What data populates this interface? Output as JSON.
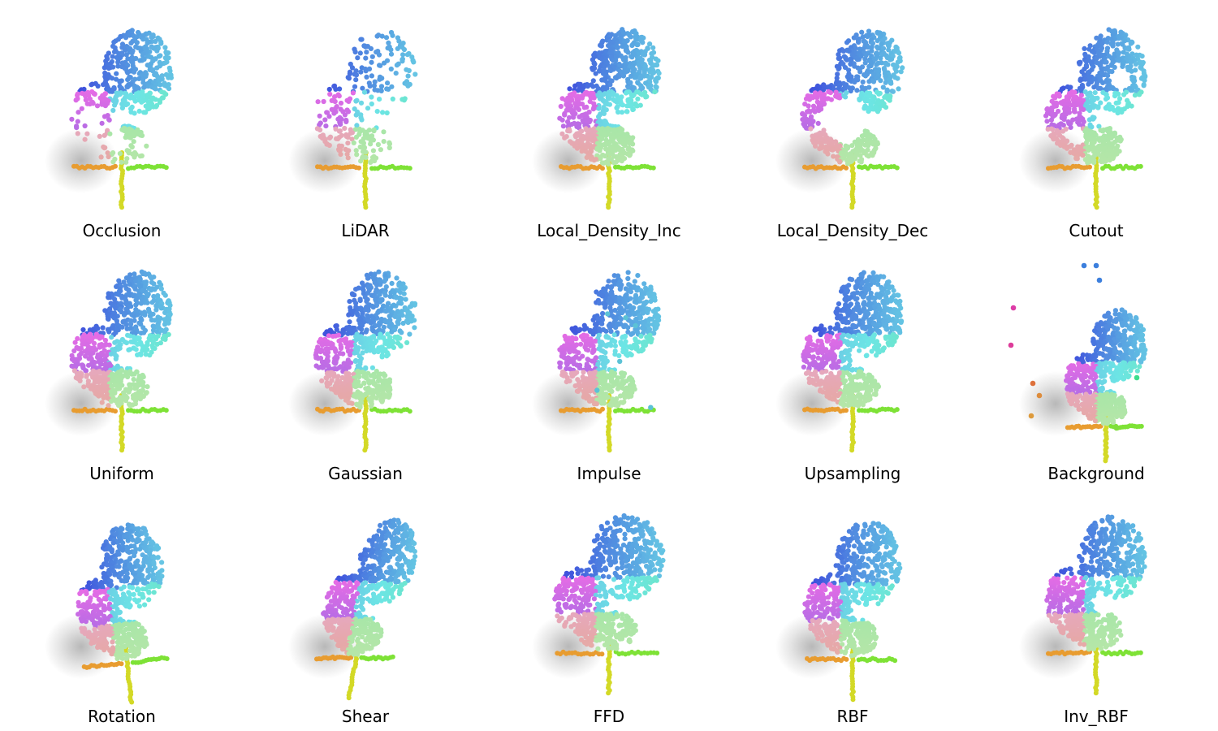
{
  "panels": [
    {
      "label": "Occlusion",
      "variant": "occlusion"
    },
    {
      "label": "LiDAR",
      "variant": "lidar"
    },
    {
      "label": "Local_Density_Inc",
      "variant": "density_inc"
    },
    {
      "label": "Local_Density_Dec",
      "variant": "density_dec"
    },
    {
      "label": "Cutout",
      "variant": "cutout"
    },
    {
      "label": "Uniform",
      "variant": "uniform"
    },
    {
      "label": "Gaussian",
      "variant": "gaussian"
    },
    {
      "label": "Impulse",
      "variant": "impulse"
    },
    {
      "label": "Upsampling",
      "variant": "upsampling"
    },
    {
      "label": "Background",
      "variant": "background"
    },
    {
      "label": "Rotation",
      "variant": "rotation"
    },
    {
      "label": "Shear",
      "variant": "shear"
    },
    {
      "label": "FFD",
      "variant": "ffd"
    },
    {
      "label": "RBF",
      "variant": "rbf"
    },
    {
      "label": "Inv_RBF",
      "variant": "inv_rbf"
    }
  ],
  "colors": {
    "background": "#ffffff",
    "label_text": "#000000"
  }
}
